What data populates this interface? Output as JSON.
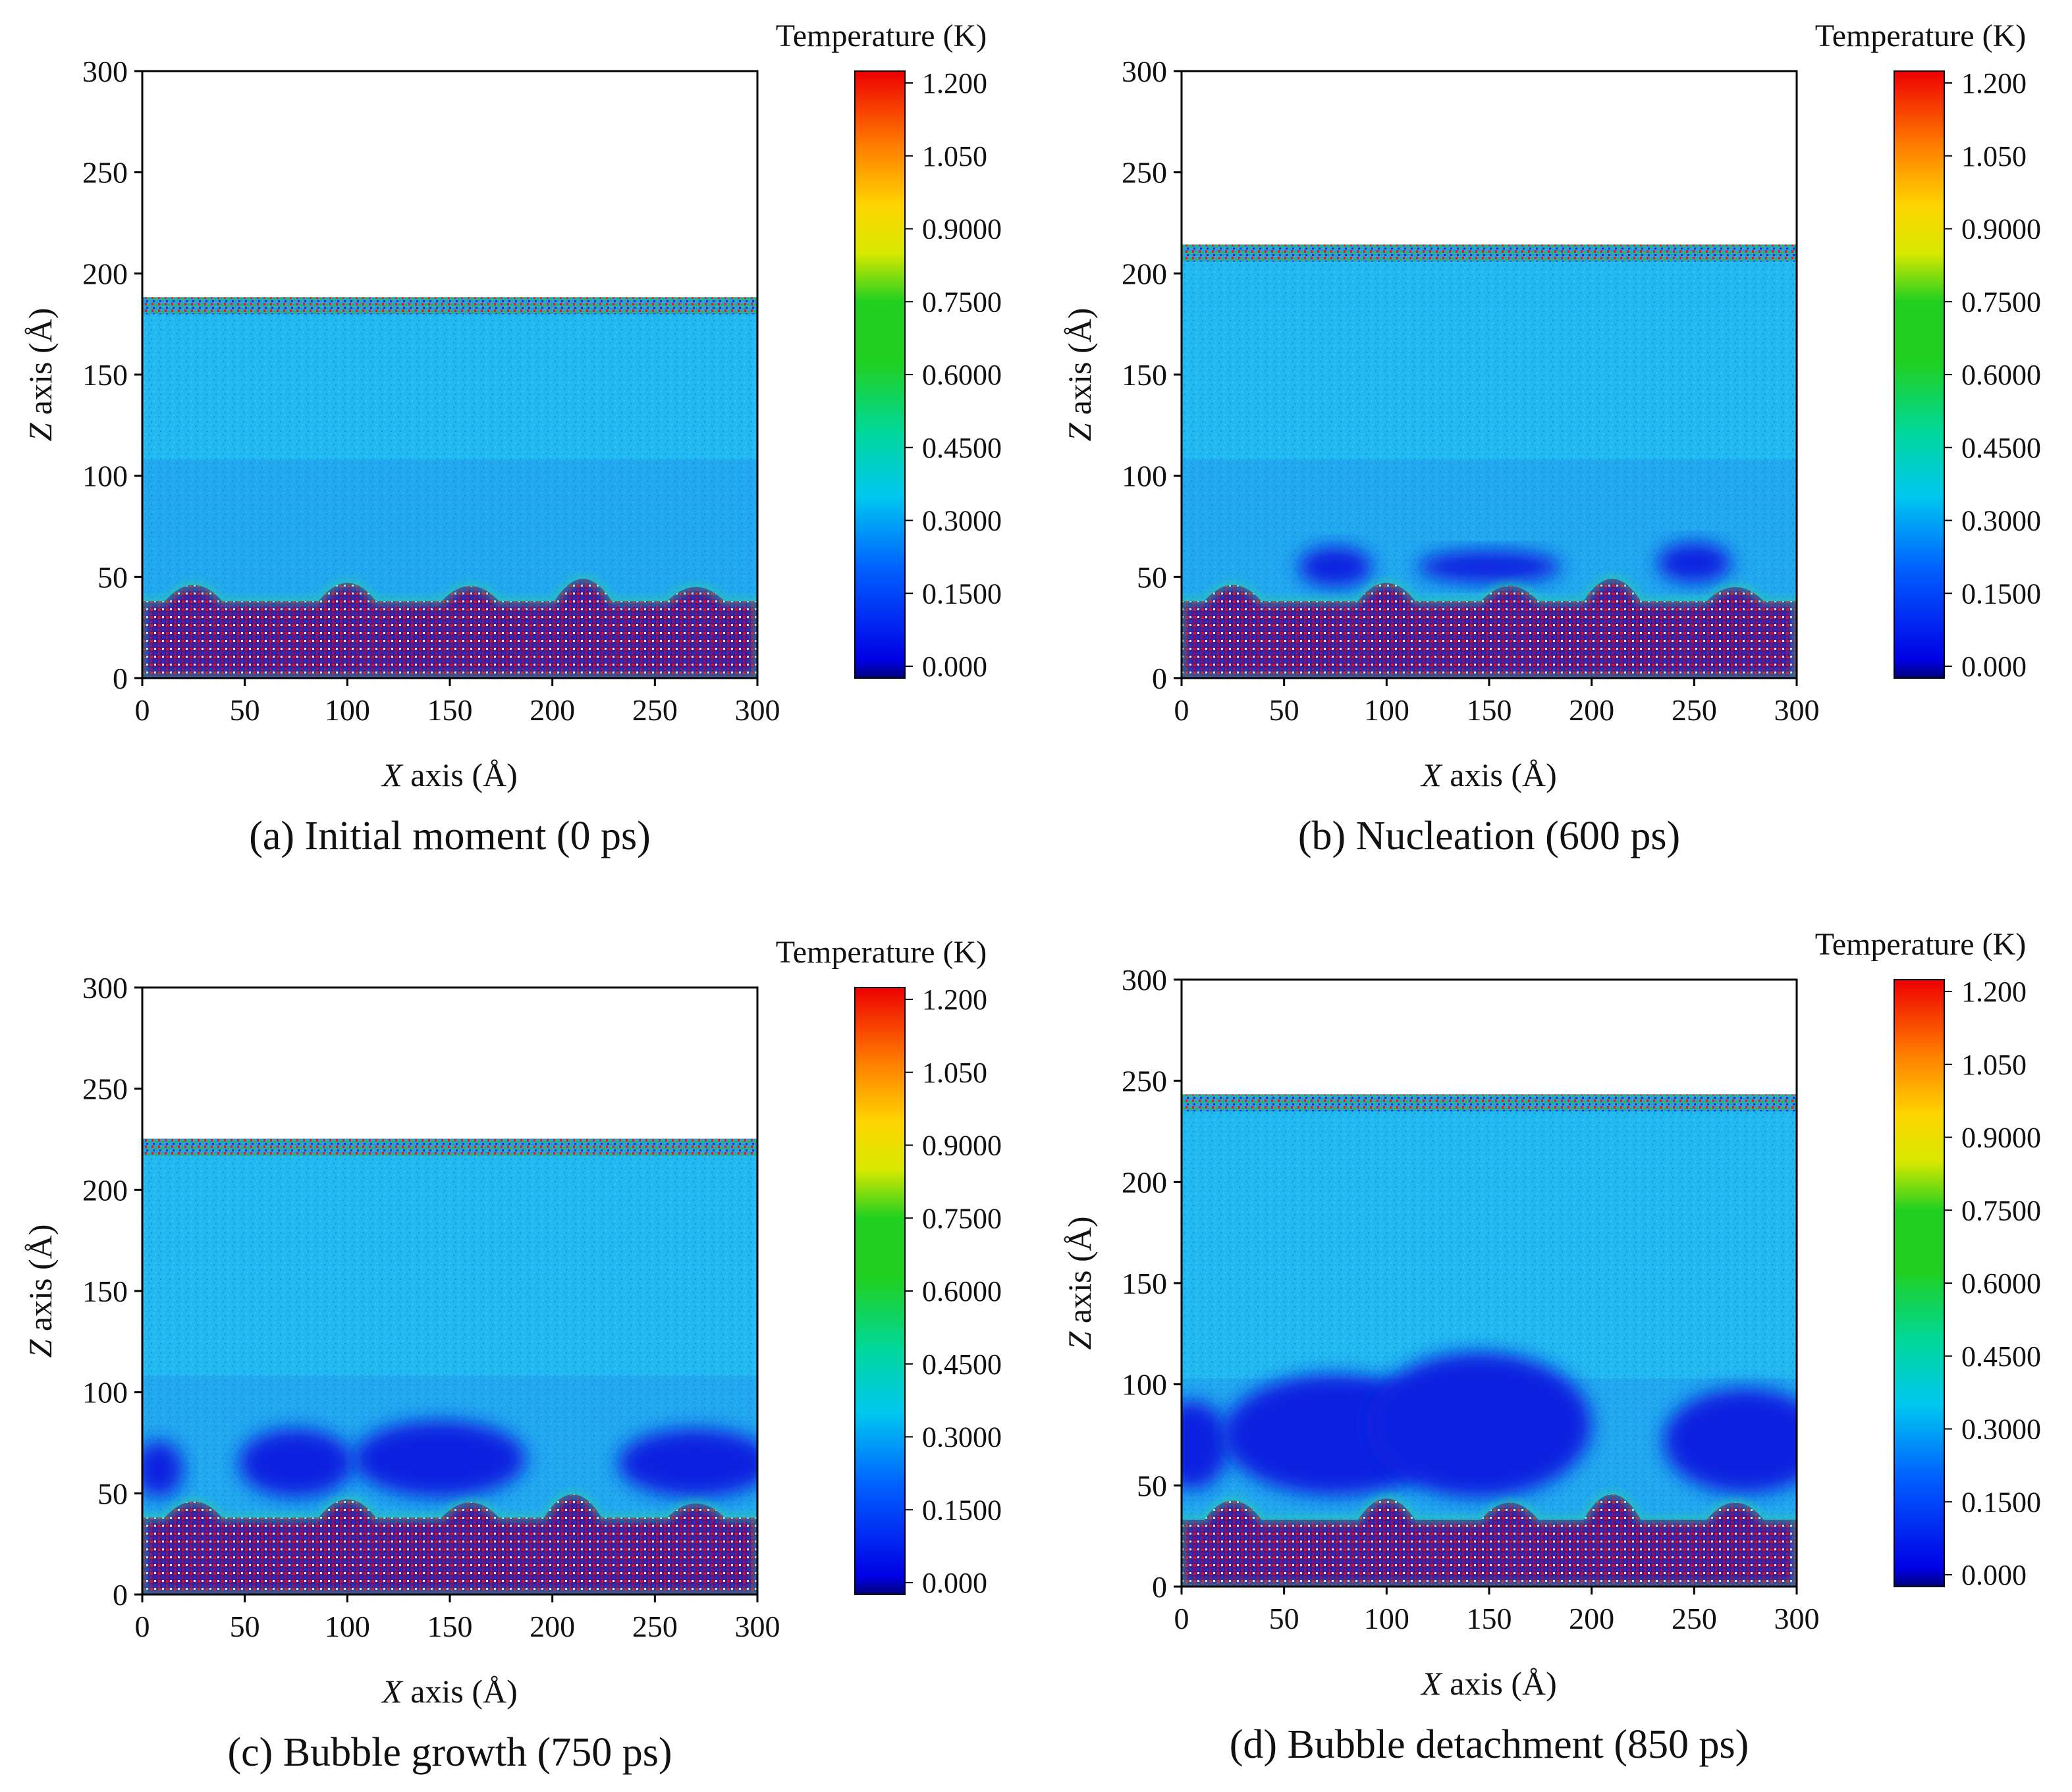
{
  "chart_data": [
    {
      "type": "heatmap",
      "caption": "(a) Initial moment (0 ps)",
      "xlabel_var": "X",
      "xlabel_rest": " axis (Å)",
      "ylabel_var": "Z",
      "ylabel_rest": " axis (Å)",
      "xlim": [
        0,
        300
      ],
      "ylim": [
        0,
        300
      ],
      "x_ticks": [
        "0",
        "50",
        "100",
        "150",
        "200",
        "250",
        "300"
      ],
      "y_ticks": [
        "0",
        "50",
        "100",
        "150",
        "200",
        "250",
        "300"
      ],
      "colorbar": {
        "title": "Temperature (K)",
        "labels": [
          "1.200",
          "1.050",
          "0.9000",
          "0.7500",
          "0.6000",
          "0.4500",
          "0.3000",
          "0.1500",
          "0.000"
        ],
        "range": [
          0,
          1.2
        ]
      },
      "regions": {
        "solid_top": 38,
        "liquid_top": 187,
        "surface_bumps": [
          {
            "x": 25,
            "height": 48
          },
          {
            "x": 100,
            "height": 50
          },
          {
            "x": 160,
            "height": 47
          },
          {
            "x": 215,
            "height": 54
          },
          {
            "x": 270,
            "height": 46
          }
        ],
        "bubbles": []
      }
    },
    {
      "type": "heatmap",
      "caption": "(b) Nucleation (600 ps)",
      "xlabel_var": "X",
      "xlabel_rest": " axis (Å)",
      "ylabel_var": "Z",
      "ylabel_rest": " axis (Å)",
      "xlim": [
        0,
        300
      ],
      "ylim": [
        0,
        300
      ],
      "x_ticks": [
        "0",
        "50",
        "100",
        "150",
        "200",
        "250",
        "300"
      ],
      "y_ticks": [
        "0",
        "50",
        "100",
        "150",
        "200",
        "250",
        "300"
      ],
      "colorbar": {
        "title": "Temperature (K)",
        "labels": [
          "1.200",
          "1.050",
          "0.9000",
          "0.7500",
          "0.6000",
          "0.4500",
          "0.3000",
          "0.1500",
          "0.000"
        ],
        "range": [
          0,
          1.2
        ]
      },
      "regions": {
        "solid_top": 38,
        "liquid_top": 213,
        "surface_bumps": [
          {
            "x": 25,
            "height": 48
          },
          {
            "x": 100,
            "height": 50
          },
          {
            "x": 160,
            "height": 47
          },
          {
            "x": 210,
            "height": 54
          },
          {
            "x": 270,
            "height": 46
          }
        ],
        "bubbles": [
          {
            "cx": 75,
            "cy": 55,
            "rx": 18,
            "ry": 10
          },
          {
            "cx": 150,
            "cy": 55,
            "rx": 35,
            "ry": 8
          },
          {
            "cx": 250,
            "cy": 57,
            "rx": 18,
            "ry": 10
          }
        ]
      }
    },
    {
      "type": "heatmap",
      "caption": "(c) Bubble growth (750 ps)",
      "xlabel_var": "X",
      "xlabel_rest": " axis (Å)",
      "ylabel_var": "Z",
      "ylabel_rest": " axis (Å)",
      "xlim": [
        0,
        300
      ],
      "ylim": [
        0,
        300
      ],
      "x_ticks": [
        "0",
        "50",
        "100",
        "150",
        "200",
        "250",
        "300"
      ],
      "y_ticks": [
        "0",
        "50",
        "100",
        "150",
        "200",
        "250",
        "300"
      ],
      "colorbar": {
        "title": "Temperature (K)",
        "labels": [
          "1.200",
          "1.050",
          "0.9000",
          "0.7500",
          "0.6000",
          "0.4500",
          "0.3000",
          "0.1500",
          "0.000"
        ],
        "range": [
          0,
          1.2
        ]
      },
      "regions": {
        "solid_top": 38,
        "liquid_top": 224,
        "surface_bumps": [
          {
            "x": 25,
            "height": 48
          },
          {
            "x": 100,
            "height": 50
          },
          {
            "x": 160,
            "height": 47
          },
          {
            "x": 210,
            "height": 55
          },
          {
            "x": 270,
            "height": 46
          }
        ],
        "bubbles": [
          {
            "cx": 8,
            "cy": 62,
            "rx": 12,
            "ry": 14
          },
          {
            "cx": 75,
            "cy": 65,
            "rx": 28,
            "ry": 17
          },
          {
            "cx": 145,
            "cy": 67,
            "rx": 42,
            "ry": 19
          },
          {
            "cx": 270,
            "cy": 65,
            "rx": 38,
            "ry": 17
          }
        ]
      }
    },
    {
      "type": "heatmap",
      "caption": "(d) Bubble detachment (850 ps)",
      "xlabel_var": "X",
      "xlabel_rest": " axis (Å)",
      "ylabel_var": "Z",
      "ylabel_rest": " axis (Å)",
      "xlim": [
        0,
        300
      ],
      "ylim": [
        0,
        300
      ],
      "x_ticks": [
        "0",
        "50",
        "100",
        "150",
        "200",
        "250",
        "300"
      ],
      "y_ticks": [
        "0",
        "50",
        "100",
        "150",
        "200",
        "250",
        "300"
      ],
      "colorbar": {
        "title": "Temperature (K)",
        "labels": [
          "1.200",
          "1.050",
          "0.9000",
          "0.7500",
          "0.6000",
          "0.4500",
          "0.3000",
          "0.1500",
          "0.000"
        ],
        "range": [
          0,
          1.2
        ]
      },
      "regions": {
        "solid_top": 33,
        "liquid_top": 242,
        "surface_bumps": [
          {
            "x": 25,
            "height": 46
          },
          {
            "x": 100,
            "height": 48
          },
          {
            "x": 160,
            "height": 44
          },
          {
            "x": 210,
            "height": 52
          },
          {
            "x": 270,
            "height": 44
          }
        ],
        "bubbles": [
          {
            "cx": 5,
            "cy": 70,
            "rx": 18,
            "ry": 22
          },
          {
            "cx": 75,
            "cy": 75,
            "rx": 55,
            "ry": 30
          },
          {
            "cx": 145,
            "cy": 80,
            "rx": 55,
            "ry": 36
          },
          {
            "cx": 275,
            "cy": 72,
            "rx": 40,
            "ry": 26
          }
        ]
      }
    }
  ]
}
